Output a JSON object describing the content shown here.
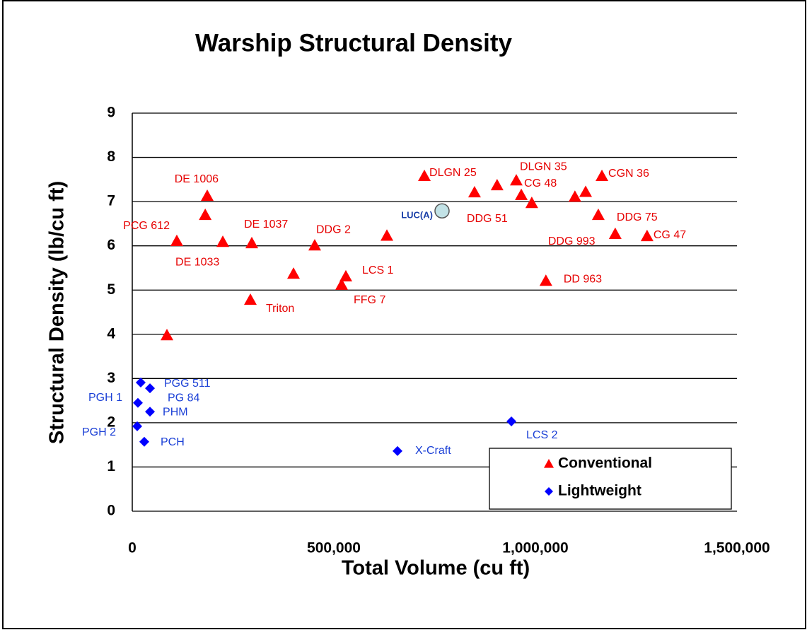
{
  "chart_data": {
    "type": "scatter",
    "title": "Warship Structural Density",
    "x_label": "Total Volume (cu ft)",
    "y_label": "Structural Density (lb/cu ft)",
    "xlim": [
      0,
      1500000
    ],
    "ylim": [
      0,
      9
    ],
    "xticks": [
      0,
      {
        "value": 500000,
        "label": "500,000"
      },
      {
        "value": 1000000,
        "label": "1,000,000"
      },
      {
        "value": 1500000,
        "label": "1,500,000"
      }
    ],
    "yticks": [
      0,
      1,
      2,
      3,
      4,
      5,
      6,
      7,
      8,
      9
    ],
    "grid": true,
    "legend": "lower right",
    "series": [
      {
        "name": "Conventional",
        "color": "#ff0000",
        "marker": "triangle",
        "x": [
          186000,
          181000,
          110500,
          224600,
          296500,
          452600,
          631600,
          400000,
          529800,
          519300,
          293000,
          86000,
          724600,
          849000,
          905000,
          952600,
          965000,
          991000,
          1098000,
          1124600,
          1165000,
          1156000,
          1198000,
          1277000,
          1026000
        ],
        "values": [
          7.13,
          6.7,
          6.11,
          6.09,
          6.06,
          6.01,
          6.23,
          5.37,
          5.31,
          5.12,
          4.78,
          3.98,
          7.58,
          7.21,
          7.37,
          7.48,
          7.15,
          6.97,
          7.11,
          7.22,
          7.58,
          6.7,
          6.27,
          6.22,
          5.21
        ],
        "point_labels": [
          "DE 1006",
          null,
          "PCG 612",
          "DE 1033",
          "DE 1037",
          "DDG 2",
          null,
          null,
          "LCS 1",
          "FFG 7",
          "Triton",
          null,
          "DLGN 25",
          "DDG 51",
          null,
          "DLGN 35",
          "CG 48",
          null,
          null,
          null,
          "CGN 36",
          "DDG 75",
          "DDG 993",
          "CG 47",
          "DD 963"
        ]
      },
      {
        "name": "Lightweight",
        "color": "#0000ff",
        "marker": "diamond",
        "x": [
          21000,
          43900,
          14000,
          43900,
          12300,
          29800,
          657900,
          940400
        ],
        "values": [
          2.91,
          2.78,
          2.45,
          2.25,
          1.92,
          1.57,
          1.36,
          2.03
        ],
        "point_labels": [
          "PGG 511",
          "PG 84",
          "PGH 1",
          "PHM",
          "PGH 2",
          "PCH",
          "X-Craft",
          "LCS 2"
        ]
      },
      {
        "color": "#c2e2e6",
        "marker": "circle",
        "x": [
          768400
        ],
        "values": [
          6.79
        ],
        "point_labels": [
          "LUC(A)"
        ]
      }
    ]
  }
}
